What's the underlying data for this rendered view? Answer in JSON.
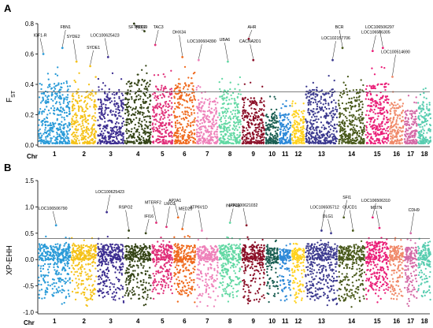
{
  "chart_data": [
    {
      "panel": "A",
      "type": "scatter",
      "subtype": "manhattan",
      "ylabel": "F",
      "ylabel_sub": "ST",
      "xlabel": "Chr",
      "ylim": [
        0,
        0.8
      ],
      "yticks": [
        "0.0",
        "0.2",
        "0.4",
        "0.6",
        "0.8"
      ],
      "threshold": 0.35,
      "chromosomes": [
        "1",
        "2",
        "3",
        "4",
        "5",
        "6",
        "7",
        "8",
        "9",
        "10",
        "11",
        "12",
        "13",
        "14",
        "15",
        "16",
        "17",
        "18"
      ],
      "colors": [
        "#2a9bd8",
        "#f5c219",
        "#3d2e91",
        "#344416",
        "#e02f79",
        "#ef6a1e",
        "#ee82ba",
        "#62d8a3",
        "#8b1028",
        "#1a5e52",
        "#2f8ad8",
        "#ffd21f",
        "#3c3a8f",
        "#4a5a1c",
        "#ea1f78",
        "#f08a6a",
        "#d46aa6",
        "#59cdb0"
      ],
      "base_heights": [
        0.4,
        0.36,
        0.36,
        0.42,
        0.38,
        0.4,
        0.3,
        0.36,
        0.3,
        0.2,
        0.2,
        0.22,
        0.36,
        0.36,
        0.4,
        0.26,
        0.22,
        0.28
      ],
      "peaks": [
        {
          "gene": "IGF1-R",
          "chr": 1,
          "pos": 0.15,
          "value": 0.6
        },
        {
          "gene": "FBN1",
          "chr": 1,
          "pos": 0.75,
          "value": 0.64
        },
        {
          "gene": "SYDE2",
          "chr": 2,
          "pos": 0.2,
          "value": 0.55
        },
        {
          "gene": "SYDE1",
          "chr": 2,
          "pos": 0.75,
          "value": 0.52
        },
        {
          "gene": "LOC100625423",
          "chr": 3,
          "pos": 0.4,
          "value": 0.58
        },
        {
          "gene": "SFTA2D2",
          "chr": 4,
          "pos": 0.35,
          "value": 0.8
        },
        {
          "gene": "TBX19",
          "chr": 4,
          "pos": 0.75,
          "value": 0.75
        },
        {
          "gene": "TAC3",
          "chr": 5,
          "pos": 0.15,
          "value": 0.66
        },
        {
          "gene": "DHX34",
          "chr": 6,
          "pos": 0.4,
          "value": 0.58
        },
        {
          "gene": "LOC100604390",
          "chr": 7,
          "pos": 0.1,
          "value": 0.56
        },
        {
          "gene": "UBA6",
          "chr": 8,
          "pos": 0.4,
          "value": 0.55
        },
        {
          "gene": "AHR",
          "chr": 9,
          "pos": 0.3,
          "value": 0.7
        },
        {
          "gene": "CACNA2D1",
          "chr": 9,
          "pos": 0.5,
          "value": 0.56
        },
        {
          "gene": "LOC102157706",
          "chr": 13,
          "pos": 0.85,
          "value": 0.56
        },
        {
          "gene": "BCR",
          "chr": 14,
          "pos": 0.15,
          "value": 0.64
        },
        {
          "gene": "LOC106506305",
          "chr": 15,
          "pos": 0.3,
          "value": 0.62
        },
        {
          "gene": "LOC106506297",
          "chr": 15,
          "pos": 0.75,
          "value": 0.64
        },
        {
          "gene": "LOC100514690",
          "chr": 16,
          "pos": 0.2,
          "value": 0.45
        }
      ]
    },
    {
      "panel": "B",
      "type": "scatter",
      "subtype": "manhattan",
      "ylabel": "XP-EHH",
      "xlabel": "Chr",
      "ylim": [
        -1.0,
        1.5
      ],
      "yticks": [
        "-1.0",
        "-0.5",
        "0.0",
        "0.5",
        "1.0",
        "1.5"
      ],
      "threshold": 0.4,
      "chromosomes": [
        "1",
        "2",
        "3",
        "4",
        "5",
        "6",
        "7",
        "8",
        "9",
        "10",
        "11",
        "12",
        "13",
        "14",
        "15",
        "16",
        "17",
        "18"
      ],
      "colors": [
        "#2a9bd8",
        "#f5c219",
        "#3d2e91",
        "#344416",
        "#e02f79",
        "#ef6a1e",
        "#ee82ba",
        "#62d8a3",
        "#8b1028",
        "#1a5e52",
        "#2f8ad8",
        "#ffd21f",
        "#3c3a8f",
        "#4a5a1c",
        "#ea1f78",
        "#f08a6a",
        "#d46aa6",
        "#59cdb0"
      ],
      "base_high": [
        0.3,
        0.28,
        0.3,
        0.26,
        0.28,
        0.3,
        0.26,
        0.3,
        0.28,
        0.22,
        0.2,
        0.22,
        0.3,
        0.26,
        0.34,
        0.26,
        0.24,
        0.28
      ],
      "base_low": [
        -0.75,
        -0.8,
        -0.75,
        -0.75,
        -0.65,
        -0.7,
        -0.8,
        -0.7,
        -0.8,
        -0.7,
        -0.7,
        -0.75,
        -0.78,
        -0.78,
        -0.7,
        -0.7,
        -0.78,
        -0.75
      ],
      "peaks": [
        {
          "gene": "LOC106506790",
          "chr": 1,
          "pos": 0.55,
          "value": 0.65
        },
        {
          "gene": "LOC100625423",
          "chr": 3,
          "pos": 0.35,
          "value": 0.9
        },
        {
          "gene": "RSPO2",
          "chr": 4,
          "pos": 0.15,
          "value": 0.55
        },
        {
          "gene": "IFI16",
          "chr": 4,
          "pos": 0.8,
          "value": 0.5
        },
        {
          "gene": "MTERF2",
          "chr": 5,
          "pos": 0.2,
          "value": 0.7
        },
        {
          "gene": "LMO3",
          "chr": 5,
          "pos": 0.7,
          "value": 0.62
        },
        {
          "gene": "AP2A1",
          "chr": 6,
          "pos": 0.2,
          "value": 0.8
        },
        {
          "gene": "MED25",
          "chr": 6,
          "pos": 0.4,
          "value": 0.58
        },
        {
          "gene": "ATP6V1D",
          "chr": 7,
          "pos": 0.25,
          "value": 0.55
        },
        {
          "gene": "INPP4B",
          "chr": 8,
          "pos": 0.5,
          "value": 0.7
        },
        {
          "gene": "LOC100621032",
          "chr": 9,
          "pos": 0.2,
          "value": 0.65
        },
        {
          "gene": "LOC106505712",
          "chr": 13,
          "pos": 0.5,
          "value": 0.55
        },
        {
          "gene": "DLG1",
          "chr": 13,
          "pos": 0.8,
          "value": 0.5
        },
        {
          "gene": "SFI1",
          "chr": 14,
          "pos": 0.2,
          "value": 0.8
        },
        {
          "gene": "GUCD1",
          "chr": 14,
          "pos": 0.55,
          "value": 0.55
        },
        {
          "gene": "LOC106506310",
          "chr": 15,
          "pos": 0.3,
          "value": 0.8
        },
        {
          "gene": "MSTN",
          "chr": 15,
          "pos": 0.6,
          "value": 0.6
        },
        {
          "gene": "CDH9",
          "chr": 17,
          "pos": 0.5,
          "value": 0.5
        }
      ]
    }
  ]
}
